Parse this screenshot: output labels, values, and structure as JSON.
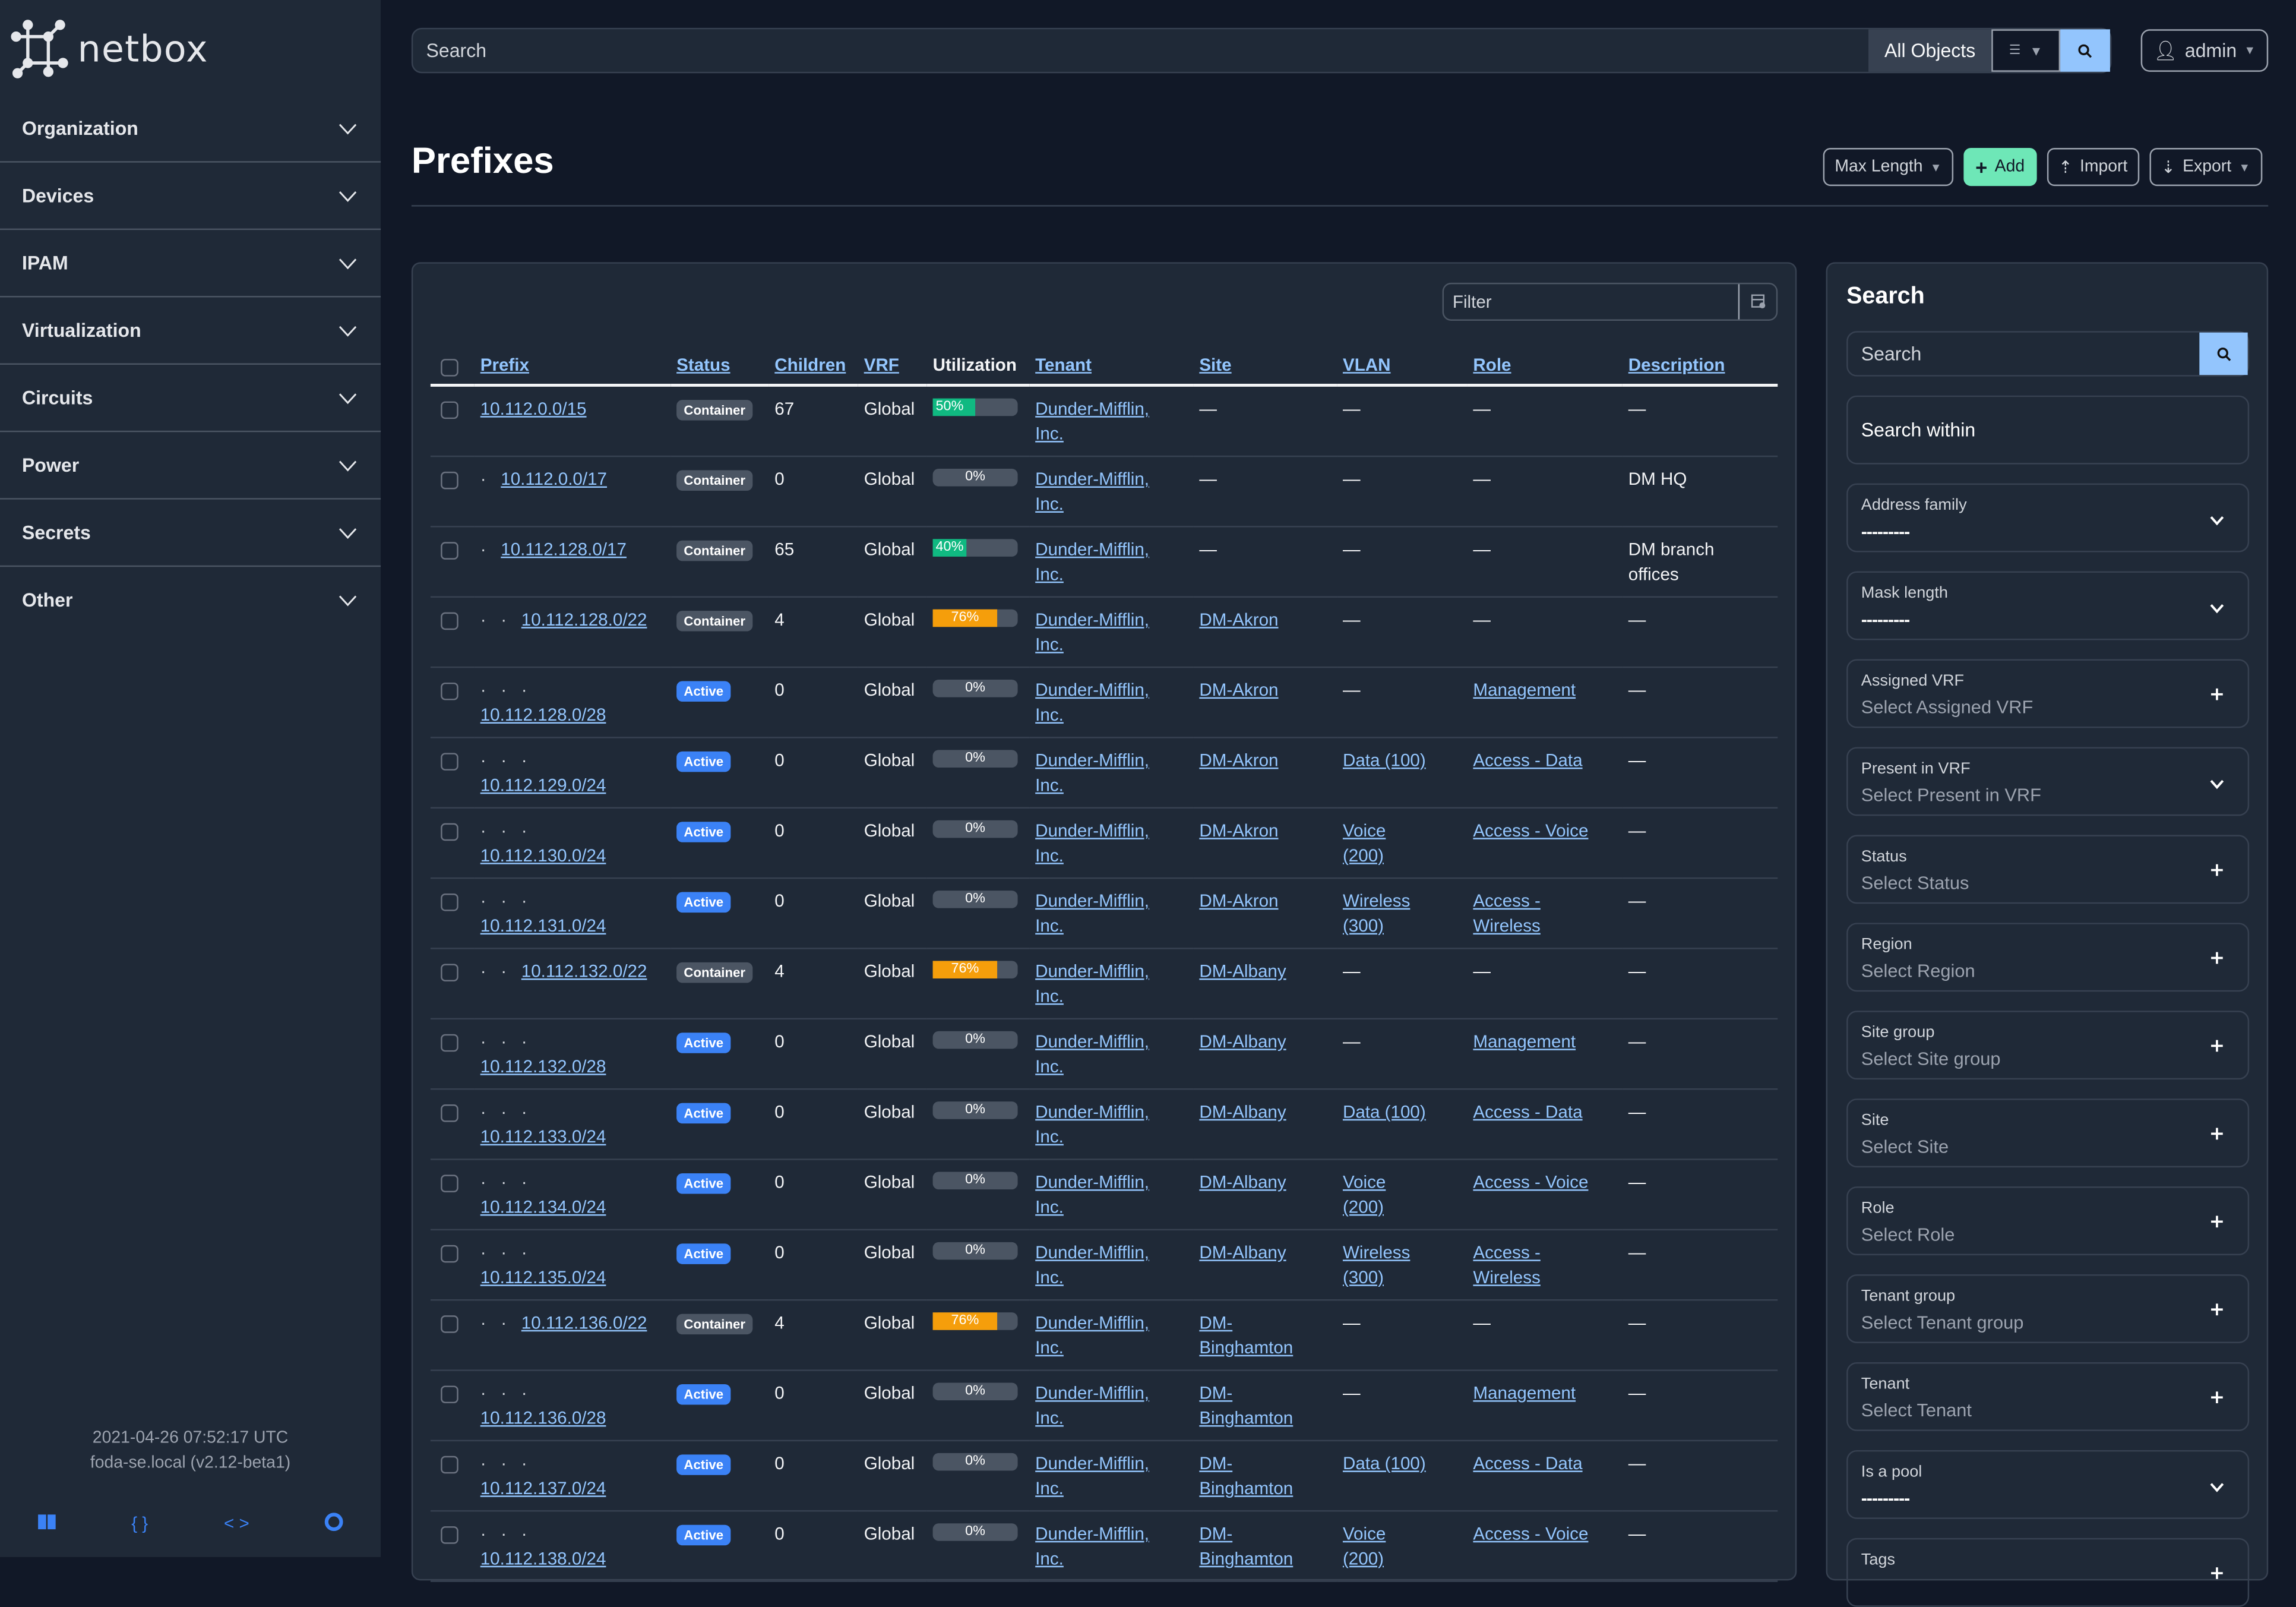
{
  "brand": {
    "name": "netbox"
  },
  "sidebar": {
    "items": [
      {
        "label": "Organization"
      },
      {
        "label": "Devices"
      },
      {
        "label": "IPAM"
      },
      {
        "label": "Virtualization"
      },
      {
        "label": "Circuits"
      },
      {
        "label": "Power"
      },
      {
        "label": "Secrets"
      },
      {
        "label": "Other"
      }
    ],
    "footer": {
      "timestamp": "2021-04-26 07:52:17 UTC",
      "host": "foda-se.local (v2.12-beta1)"
    },
    "footer_icons": [
      "book-icon",
      "braces-icon",
      "code-icon",
      "lifebuoy-icon"
    ]
  },
  "topbar": {
    "search_placeholder": "Search",
    "scope": "All Objects",
    "user": "admin"
  },
  "page": {
    "title": "Prefixes",
    "actions": {
      "max_length": "Max Length",
      "add": "Add",
      "import": "Import",
      "export": "Export"
    }
  },
  "colors": {
    "accent": "#93c5fd",
    "add": "#6ee7b7",
    "active": "#3b82f6",
    "container": "#4b5563",
    "util_low": "#10b981",
    "util_mid": "#f59e0b"
  },
  "table": {
    "filter_placeholder": "Filter",
    "columns": [
      "Prefix",
      "Status",
      "Children",
      "VRF",
      "Utilization",
      "Tenant",
      "Site",
      "VLAN",
      "Role",
      "Description"
    ],
    "rows": [
      {
        "prefix": "10.112.0.0/15",
        "depth": 0,
        "status": "Container",
        "children": "67",
        "vrf": "Global",
        "utilization": 50,
        "tenant": "Dunder-Mifflin, Inc.",
        "site": "—",
        "vlan": "—",
        "role": "—",
        "description": "—"
      },
      {
        "prefix": "10.112.0.0/17",
        "depth": 1,
        "status": "Container",
        "children": "0",
        "vrf": "Global",
        "utilization": 0,
        "tenant": "Dunder-Mifflin, Inc.",
        "site": "—",
        "vlan": "—",
        "role": "—",
        "description": "DM HQ"
      },
      {
        "prefix": "10.112.128.0/17",
        "depth": 1,
        "status": "Container",
        "children": "65",
        "vrf": "Global",
        "utilization": 40,
        "tenant": "Dunder-Mifflin, Inc.",
        "site": "—",
        "vlan": "—",
        "role": "—",
        "description": "DM branch offices"
      },
      {
        "prefix": "10.112.128.0/22",
        "depth": 2,
        "status": "Container",
        "children": "4",
        "vrf": "Global",
        "utilization": 76,
        "tenant": "Dunder-Mifflin, Inc.",
        "site": "DM-Akron",
        "vlan": "—",
        "role": "—",
        "description": "—"
      },
      {
        "prefix": "10.112.128.0/28",
        "depth": 3,
        "status": "Active",
        "children": "0",
        "vrf": "Global",
        "utilization": 0,
        "tenant": "Dunder-Mifflin, Inc.",
        "site": "DM-Akron",
        "vlan": "—",
        "role": "Management",
        "description": "—"
      },
      {
        "prefix": "10.112.129.0/24",
        "depth": 3,
        "status": "Active",
        "children": "0",
        "vrf": "Global",
        "utilization": 0,
        "tenant": "Dunder-Mifflin, Inc.",
        "site": "DM-Akron",
        "vlan": "Data (100)",
        "role": "Access - Data",
        "description": "—"
      },
      {
        "prefix": "10.112.130.0/24",
        "depth": 3,
        "status": "Active",
        "children": "0",
        "vrf": "Global",
        "utilization": 0,
        "tenant": "Dunder-Mifflin, Inc.",
        "site": "DM-Akron",
        "vlan": "Voice (200)",
        "role": "Access - Voice",
        "description": "—"
      },
      {
        "prefix": "10.112.131.0/24",
        "depth": 3,
        "status": "Active",
        "children": "0",
        "vrf": "Global",
        "utilization": 0,
        "tenant": "Dunder-Mifflin, Inc.",
        "site": "DM-Akron",
        "vlan": "Wireless (300)",
        "role": "Access - Wireless",
        "description": "—"
      },
      {
        "prefix": "10.112.132.0/22",
        "depth": 2,
        "status": "Container",
        "children": "4",
        "vrf": "Global",
        "utilization": 76,
        "tenant": "Dunder-Mifflin, Inc.",
        "site": "DM-Albany",
        "vlan": "—",
        "role": "—",
        "description": "—"
      },
      {
        "prefix": "10.112.132.0/28",
        "depth": 3,
        "status": "Active",
        "children": "0",
        "vrf": "Global",
        "utilization": 0,
        "tenant": "Dunder-Mifflin, Inc.",
        "site": "DM-Albany",
        "vlan": "—",
        "role": "Management",
        "description": "—"
      },
      {
        "prefix": "10.112.133.0/24",
        "depth": 3,
        "status": "Active",
        "children": "0",
        "vrf": "Global",
        "utilization": 0,
        "tenant": "Dunder-Mifflin, Inc.",
        "site": "DM-Albany",
        "vlan": "Data (100)",
        "role": "Access - Data",
        "description": "—"
      },
      {
        "prefix": "10.112.134.0/24",
        "depth": 3,
        "status": "Active",
        "children": "0",
        "vrf": "Global",
        "utilization": 0,
        "tenant": "Dunder-Mifflin, Inc.",
        "site": "DM-Albany",
        "vlan": "Voice (200)",
        "role": "Access - Voice",
        "description": "—"
      },
      {
        "prefix": "10.112.135.0/24",
        "depth": 3,
        "status": "Active",
        "children": "0",
        "vrf": "Global",
        "utilization": 0,
        "tenant": "Dunder-Mifflin, Inc.",
        "site": "DM-Albany",
        "vlan": "Wireless (300)",
        "role": "Access - Wireless",
        "description": "—"
      },
      {
        "prefix": "10.112.136.0/22",
        "depth": 2,
        "status": "Container",
        "children": "4",
        "vrf": "Global",
        "utilization": 76,
        "tenant": "Dunder-Mifflin, Inc.",
        "site": "DM-Binghamton",
        "vlan": "—",
        "role": "—",
        "description": "—"
      },
      {
        "prefix": "10.112.136.0/28",
        "depth": 3,
        "status": "Active",
        "children": "0",
        "vrf": "Global",
        "utilization": 0,
        "tenant": "Dunder-Mifflin, Inc.",
        "site": "DM-Binghamton",
        "vlan": "—",
        "role": "Management",
        "description": "—"
      },
      {
        "prefix": "10.112.137.0/24",
        "depth": 3,
        "status": "Active",
        "children": "0",
        "vrf": "Global",
        "utilization": 0,
        "tenant": "Dunder-Mifflin, Inc.",
        "site": "DM-Binghamton",
        "vlan": "Data (100)",
        "role": "Access - Data",
        "description": "—"
      },
      {
        "prefix": "10.112.138.0/24",
        "depth": 3,
        "status": "Active",
        "children": "0",
        "vrf": "Global",
        "utilization": 0,
        "tenant": "Dunder-Mifflin, Inc.",
        "site": "DM-Binghamton",
        "vlan": "Voice (200)",
        "role": "Access - Voice",
        "description": "—"
      }
    ]
  },
  "filters": {
    "title": "Search",
    "search_placeholder": "Search",
    "search_within": "Search within",
    "fields": [
      {
        "label": "Address family",
        "value": "---------",
        "kind": "select"
      },
      {
        "label": "Mask length",
        "value": "---------",
        "kind": "select"
      },
      {
        "label": "Assigned VRF",
        "value": "Select Assigned VRF",
        "kind": "add"
      },
      {
        "label": "Present in VRF",
        "value": "Select Present in VRF",
        "kind": "select"
      },
      {
        "label": "Status",
        "value": "Select Status",
        "kind": "add"
      },
      {
        "label": "Region",
        "value": "Select Region",
        "kind": "add"
      },
      {
        "label": "Site group",
        "value": "Select Site group",
        "kind": "add"
      },
      {
        "label": "Site",
        "value": "Select Site",
        "kind": "add"
      },
      {
        "label": "Role",
        "value": "Select Role",
        "kind": "add"
      },
      {
        "label": "Tenant group",
        "value": "Select Tenant group",
        "kind": "add"
      },
      {
        "label": "Tenant",
        "value": "Select Tenant",
        "kind": "add"
      },
      {
        "label": "Is a pool",
        "value": "---------",
        "kind": "select"
      },
      {
        "label": "Tags",
        "value": "",
        "kind": "add"
      }
    ]
  }
}
